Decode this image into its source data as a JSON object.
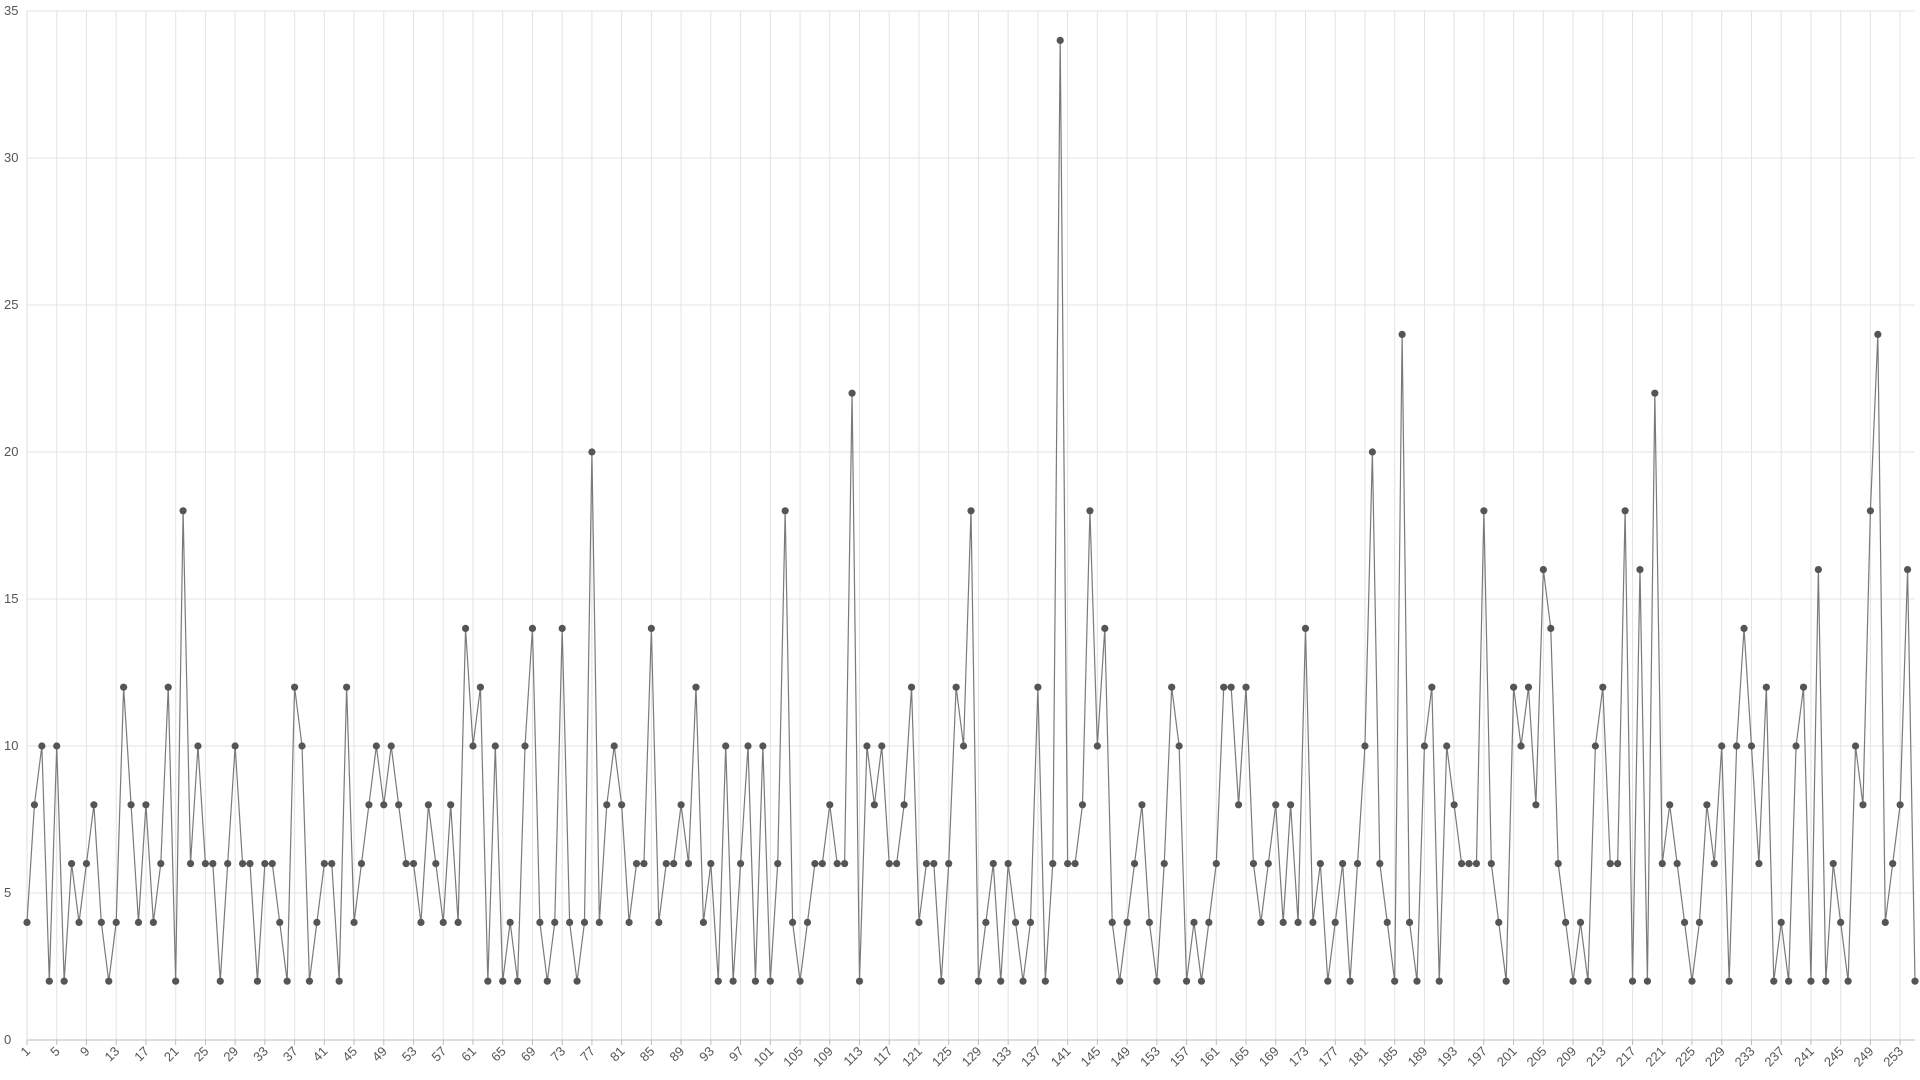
{
  "chart_data": {
    "type": "line",
    "color": "#7a7a7a",
    "marker_color": "#555555",
    "grid": true,
    "x": [
      1,
      2,
      3,
      4,
      5,
      6,
      7,
      8,
      9,
      10,
      11,
      12,
      13,
      14,
      15,
      16,
      17,
      18,
      19,
      20,
      21,
      22,
      23,
      24,
      25,
      26,
      27,
      28,
      29,
      30,
      31,
      32,
      33,
      34,
      35,
      36,
      37,
      38,
      39,
      40,
      41,
      42,
      43,
      44,
      45,
      46,
      47,
      48,
      49,
      50,
      51,
      52,
      53,
      54,
      55,
      56,
      57,
      58,
      59,
      60,
      61,
      62,
      63,
      64,
      65,
      66,
      67,
      68,
      69,
      70,
      71,
      72,
      73,
      74,
      75,
      76,
      77,
      78,
      79,
      80,
      81,
      82,
      83,
      84,
      85,
      86,
      87,
      88,
      89,
      90,
      91,
      92,
      93,
      94,
      95,
      96,
      97,
      98,
      99,
      100,
      101,
      102,
      103,
      104,
      105,
      106,
      107,
      108,
      109,
      110,
      111,
      112,
      113,
      114,
      115,
      116,
      117,
      118,
      119,
      120,
      121,
      122,
      123,
      124,
      125,
      126,
      127,
      128,
      129,
      130,
      131,
      132,
      133,
      134,
      135,
      136,
      137,
      138,
      139,
      140,
      141,
      142,
      143,
      144,
      145,
      146,
      147,
      148,
      149,
      150,
      151,
      152,
      153,
      154,
      155,
      156,
      157,
      158,
      159,
      160,
      161,
      162,
      163,
      164,
      165,
      166,
      167,
      168,
      169,
      170,
      171,
      172,
      173,
      174,
      175,
      176,
      177,
      178,
      179,
      180,
      181,
      182,
      183,
      184,
      185,
      186,
      187,
      188,
      189,
      190,
      191,
      192,
      193,
      194,
      195,
      196,
      197,
      198,
      199,
      200,
      201,
      202,
      203,
      204,
      205,
      206,
      207,
      208,
      209,
      210,
      211,
      212,
      213,
      214,
      215,
      216,
      217,
      218,
      219,
      220,
      221,
      222,
      223,
      224,
      225,
      226,
      227,
      228,
      229,
      230,
      231,
      232,
      233,
      234,
      235,
      236,
      237,
      238,
      239,
      240,
      241,
      242,
      243,
      244,
      245,
      246,
      247,
      248,
      249,
      250,
      251,
      252,
      253,
      254,
      255
    ],
    "values": [
      4,
      8,
      10,
      2,
      10,
      2,
      6,
      4,
      6,
      8,
      4,
      2,
      4,
      12,
      8,
      4,
      8,
      4,
      6,
      12,
      2,
      18,
      6,
      10,
      6,
      6,
      2,
      6,
      10,
      6,
      6,
      2,
      6,
      6,
      4,
      2,
      12,
      10,
      2,
      4,
      6,
      6,
      2,
      12,
      4,
      6,
      8,
      10,
      8,
      10,
      8,
      6,
      6,
      4,
      8,
      6,
      4,
      8,
      4,
      14,
      10,
      12,
      2,
      10,
      2,
      4,
      2,
      10,
      14,
      4,
      2,
      4,
      14,
      4,
      2,
      4,
      20,
      4,
      8,
      10,
      8,
      4,
      6,
      6,
      14,
      4,
      6,
      6,
      8,
      6,
      12,
      4,
      6,
      2,
      10,
      2,
      6,
      10,
      2,
      10,
      2,
      6,
      18,
      4,
      2,
      4,
      6,
      6,
      8,
      6,
      6,
      22,
      2,
      10,
      8,
      10,
      6,
      6,
      8,
      12,
      4,
      6,
      6,
      2,
      6,
      12,
      10,
      18,
      2,
      4,
      6,
      2,
      6,
      4,
      2,
      4,
      12,
      2,
      6,
      34,
      6,
      6,
      8,
      18,
      10,
      14,
      4,
      2,
      4,
      6,
      8,
      4,
      2,
      6,
      12,
      10,
      2,
      4,
      2,
      4,
      6,
      12,
      12,
      8,
      12,
      6,
      4,
      6,
      8,
      4,
      8,
      4,
      14,
      4,
      6,
      2,
      4,
      6,
      2,
      6,
      10,
      20,
      6,
      4,
      2,
      24,
      4,
      2,
      10,
      12,
      2,
      10,
      8,
      6,
      6,
      6,
      18,
      6,
      4,
      2,
      12,
      10,
      12,
      8,
      16,
      14,
      6,
      4,
      2,
      4,
      2,
      10,
      12,
      6,
      6,
      18,
      2,
      16,
      2,
      22,
      6,
      8,
      6,
      4,
      2,
      4,
      8,
      6,
      10,
      2,
      10,
      14,
      10,
      6,
      12,
      2,
      4,
      2,
      10,
      12,
      2,
      16,
      2,
      6,
      4,
      2,
      10,
      8,
      18,
      24,
      4,
      6,
      8,
      16,
      2
    ],
    "xlim": [
      1,
      255
    ],
    "xticks": [
      1,
      5,
      9,
      13,
      17,
      21,
      25,
      29,
      33,
      37,
      41,
      45,
      49,
      53,
      57,
      61,
      65,
      69,
      73,
      77,
      81,
      85,
      89,
      93,
      97,
      101,
      105,
      109,
      113,
      117,
      121,
      125,
      129,
      133,
      137,
      141,
      145,
      149,
      153,
      157,
      161,
      165,
      169,
      173,
      177,
      181,
      185,
      189,
      193,
      197,
      201,
      205,
      209,
      213,
      217,
      221,
      225,
      229,
      233,
      237,
      241,
      245,
      249,
      253
    ],
    "ylim": [
      0,
      35
    ],
    "yticks": [
      0,
      5,
      10,
      15,
      20,
      25,
      30,
      35
    ]
  }
}
